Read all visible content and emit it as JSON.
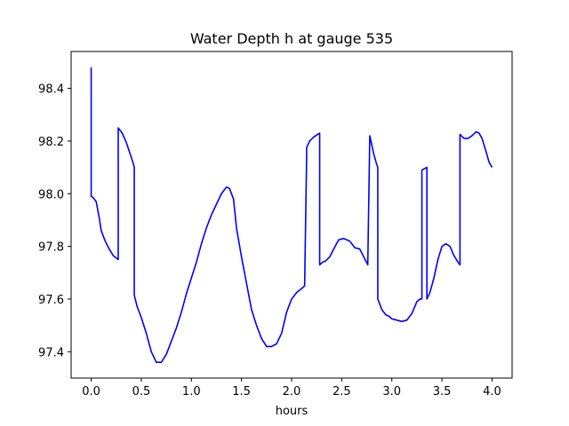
{
  "chart_data": {
    "type": "line",
    "title": "Water Depth h at gauge 535",
    "xlabel": "hours",
    "ylabel": "",
    "xlim": [
      -0.2,
      4.2
    ],
    "ylim": [
      97.3,
      98.54
    ],
    "xticks": [
      0.0,
      0.5,
      1.0,
      1.5,
      2.0,
      2.5,
      3.0,
      3.5,
      4.0
    ],
    "xtick_labels": [
      "0.0",
      "0.5",
      "1.0",
      "1.5",
      "2.0",
      "2.5",
      "3.0",
      "3.5",
      "4.0"
    ],
    "yticks": [
      97.4,
      97.6,
      97.8,
      98.0,
      98.2,
      98.4
    ],
    "ytick_labels": [
      "97.4",
      "97.6",
      "97.8",
      "98.0",
      "98.2",
      "98.4"
    ],
    "grid": false,
    "legend": "none",
    "series": [
      {
        "color": "#0000ff",
        "x": [
          0.0,
          0.0,
          0.02,
          0.05,
          0.08,
          0.1,
          0.14,
          0.18,
          0.22,
          0.27,
          0.27,
          0.31,
          0.35,
          0.39,
          0.42,
          0.43,
          0.43,
          0.46,
          0.5,
          0.55,
          0.6,
          0.65,
          0.7,
          0.75,
          0.8,
          0.85,
          0.9,
          0.95,
          1.0,
          1.05,
          1.1,
          1.15,
          1.2,
          1.25,
          1.3,
          1.35,
          1.38,
          1.42,
          1.45,
          1.5,
          1.55,
          1.6,
          1.65,
          1.7,
          1.75,
          1.8,
          1.85,
          1.9,
          1.95,
          2.0,
          2.05,
          2.1,
          2.13,
          2.15,
          2.15,
          2.18,
          2.22,
          2.26,
          2.28,
          2.28,
          2.31,
          2.34,
          2.38,
          2.42,
          2.47,
          2.52,
          2.58,
          2.63,
          2.68,
          2.72,
          2.76,
          2.78,
          2.78,
          2.82,
          2.85,
          2.86,
          2.86,
          2.9,
          2.94,
          2.97,
          3.0,
          3.05,
          3.1,
          3.15,
          3.2,
          3.25,
          3.28,
          3.3,
          3.3,
          3.35,
          3.35,
          3.38,
          3.42,
          3.46,
          3.5,
          3.54,
          3.58,
          3.62,
          3.66,
          3.68,
          3.68,
          3.72,
          3.76,
          3.8,
          3.84,
          3.87,
          3.9,
          3.94,
          3.97,
          4.0
        ],
        "y": [
          98.48,
          97.99,
          97.985,
          97.97,
          97.91,
          97.86,
          97.82,
          97.79,
          97.765,
          97.75,
          98.25,
          98.23,
          98.195,
          98.15,
          98.115,
          98.1,
          97.615,
          97.57,
          97.53,
          97.47,
          97.4,
          97.36,
          97.36,
          97.39,
          97.44,
          97.49,
          97.55,
          97.62,
          97.68,
          97.74,
          97.81,
          97.87,
          97.92,
          97.96,
          98.0,
          98.025,
          98.02,
          97.98,
          97.87,
          97.76,
          97.66,
          97.56,
          97.5,
          97.45,
          97.42,
          97.42,
          97.43,
          97.47,
          97.55,
          97.6,
          97.625,
          97.64,
          97.65,
          98.145,
          98.175,
          98.2,
          98.215,
          98.225,
          98.23,
          97.73,
          97.74,
          97.745,
          97.76,
          97.79,
          97.825,
          97.83,
          97.82,
          97.795,
          97.79,
          97.76,
          97.73,
          98.22,
          98.22,
          98.15,
          98.11,
          98.1,
          97.6,
          97.56,
          97.54,
          97.535,
          97.525,
          97.52,
          97.515,
          97.52,
          97.545,
          97.59,
          97.6,
          97.6,
          98.09,
          98.1,
          97.6,
          97.625,
          97.68,
          97.75,
          97.8,
          97.81,
          97.8,
          97.765,
          97.74,
          97.73,
          98.225,
          98.21,
          98.21,
          98.22,
          98.235,
          98.23,
          98.21,
          98.16,
          98.12,
          98.1
        ]
      }
    ]
  }
}
